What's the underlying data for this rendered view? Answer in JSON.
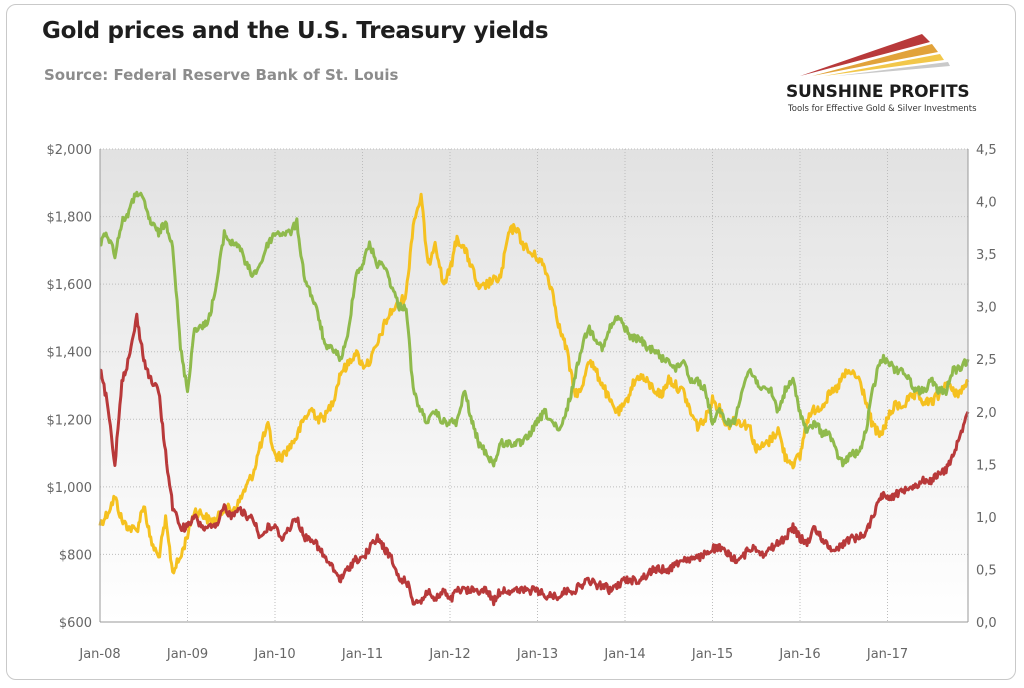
{
  "title": "Gold prices and the U.S. Treasury yields",
  "subtitle": "Source: Federal Reserve Bank of St. Louis",
  "logo": {
    "name": "SUNSHINE PROFITS",
    "tagline": "Tools for Effective Gold & Silver Investments"
  },
  "colors": {
    "gold": "#f5c120",
    "green": "#8fba4c",
    "red": "#b8393a",
    "plot_bg_top": "#e2e2e2",
    "plot_bg_bottom": "#ffffff",
    "grid": "#bdbdbd"
  },
  "chart_data": {
    "type": "line",
    "x_tick_labels": [
      "Jan-08",
      "Jan-09",
      "Jan-10",
      "Jan-11",
      "Jan-12",
      "Jan-13",
      "Jan-14",
      "Jan-15",
      "Jan-16",
      "Jan-17"
    ],
    "y_left_tick_labels": [
      "$600",
      "$800",
      "$1,000",
      "$1,200",
      "$1,400",
      "$1,600",
      "$1,800",
      "$2,000"
    ],
    "y_right_tick_labels": [
      "0,0",
      "0,5",
      "1,0",
      "1,5",
      "2,0",
      "2,5",
      "3,0",
      "3,5",
      "4,0",
      "4,5"
    ],
    "ylim_left": [
      600,
      2000
    ],
    "ylim_right": [
      0,
      4.5
    ],
    "xlim": [
      2008.0,
      2017.92
    ],
    "grid": true,
    "legend": "none",
    "series": [
      {
        "color": "gold",
        "axis": "left",
        "x": [
          2008.0,
          2008.08,
          2008.17,
          2008.25,
          2008.33,
          2008.42,
          2008.5,
          2008.58,
          2008.67,
          2008.75,
          2008.83,
          2008.92,
          2009.0,
          2009.08,
          2009.17,
          2009.25,
          2009.33,
          2009.42,
          2009.5,
          2009.58,
          2009.67,
          2009.75,
          2009.83,
          2009.92,
          2010.0,
          2010.08,
          2010.17,
          2010.25,
          2010.33,
          2010.42,
          2010.5,
          2010.58,
          2010.67,
          2010.75,
          2010.83,
          2010.92,
          2011.0,
          2011.08,
          2011.17,
          2011.25,
          2011.33,
          2011.42,
          2011.5,
          2011.58,
          2011.67,
          2011.75,
          2011.83,
          2011.92,
          2012.0,
          2012.08,
          2012.17,
          2012.25,
          2012.33,
          2012.42,
          2012.5,
          2012.58,
          2012.67,
          2012.75,
          2012.83,
          2012.92,
          2013.0,
          2013.08,
          2013.17,
          2013.25,
          2013.33,
          2013.42,
          2013.5,
          2013.58,
          2013.67,
          2013.75,
          2013.83,
          2013.92,
          2014.0,
          2014.08,
          2014.17,
          2014.25,
          2014.33,
          2014.42,
          2014.5,
          2014.58,
          2014.67,
          2014.75,
          2014.83,
          2014.92,
          2015.0,
          2015.08,
          2015.17,
          2015.25,
          2015.33,
          2015.42,
          2015.5,
          2015.58,
          2015.67,
          2015.75,
          2015.83,
          2015.92,
          2016.0,
          2016.08,
          2016.17,
          2016.25,
          2016.33,
          2016.42,
          2016.5,
          2016.58,
          2016.67,
          2016.75,
          2016.83,
          2016.92,
          2017.0,
          2017.08,
          2017.17,
          2017.25,
          2017.33,
          2017.42,
          2017.5,
          2017.58,
          2017.67,
          2017.75,
          2017.83,
          2017.92
        ],
        "y": [
          890,
          920,
          970,
          900,
          880,
          870,
          950,
          840,
          790,
          900,
          750,
          790,
          860,
          930,
          920,
          900,
          900,
          940,
          930,
          950,
          1000,
          1040,
          1120,
          1180,
          1090,
          1090,
          1120,
          1150,
          1200,
          1230,
          1200,
          1210,
          1260,
          1340,
          1360,
          1400,
          1360,
          1370,
          1420,
          1480,
          1520,
          1540,
          1570,
          1780,
          1860,
          1650,
          1730,
          1600,
          1640,
          1740,
          1700,
          1650,
          1580,
          1600,
          1610,
          1620,
          1750,
          1770,
          1720,
          1690,
          1680,
          1650,
          1580,
          1470,
          1410,
          1280,
          1280,
          1380,
          1340,
          1300,
          1250,
          1220,
          1240,
          1300,
          1330,
          1310,
          1290,
          1270,
          1320,
          1300,
          1280,
          1220,
          1180,
          1200,
          1260,
          1230,
          1180,
          1200,
          1190,
          1180,
          1110,
          1120,
          1140,
          1170,
          1090,
          1070,
          1090,
          1200,
          1230,
          1240,
          1270,
          1290,
          1330,
          1340,
          1320,
          1260,
          1180,
          1150,
          1200,
          1240,
          1240,
          1260,
          1270,
          1250,
          1250,
          1270,
          1310,
          1280,
          1280,
          1310
        ]
      },
      {
        "color": "green",
        "axis": "right",
        "x": [
          2008.0,
          2008.08,
          2008.17,
          2008.25,
          2008.33,
          2008.42,
          2008.5,
          2008.58,
          2008.67,
          2008.75,
          2008.83,
          2008.92,
          2009.0,
          2009.08,
          2009.17,
          2009.25,
          2009.33,
          2009.42,
          2009.5,
          2009.58,
          2009.67,
          2009.75,
          2009.83,
          2009.92,
          2010.0,
          2010.08,
          2010.17,
          2010.25,
          2010.33,
          2010.42,
          2010.5,
          2010.58,
          2010.67,
          2010.75,
          2010.83,
          2010.92,
          2011.0,
          2011.08,
          2011.17,
          2011.25,
          2011.33,
          2011.42,
          2011.5,
          2011.58,
          2011.67,
          2011.75,
          2011.83,
          2011.92,
          2012.0,
          2012.08,
          2012.17,
          2012.25,
          2012.33,
          2012.42,
          2012.5,
          2012.58,
          2012.67,
          2012.75,
          2012.83,
          2012.92,
          2013.0,
          2013.08,
          2013.17,
          2013.25,
          2013.33,
          2013.42,
          2013.5,
          2013.58,
          2013.67,
          2013.75,
          2013.83,
          2013.92,
          2014.0,
          2014.08,
          2014.17,
          2014.25,
          2014.33,
          2014.42,
          2014.5,
          2014.58,
          2014.67,
          2014.75,
          2014.83,
          2014.92,
          2015.0,
          2015.08,
          2015.17,
          2015.25,
          2015.33,
          2015.42,
          2015.5,
          2015.58,
          2015.67,
          2015.75,
          2015.83,
          2015.92,
          2016.0,
          2016.08,
          2016.17,
          2016.25,
          2016.33,
          2016.42,
          2016.5,
          2016.58,
          2016.67,
          2016.75,
          2016.83,
          2016.92,
          2017.0,
          2017.08,
          2017.17,
          2017.25,
          2017.33,
          2017.42,
          2017.5,
          2017.58,
          2017.67,
          2017.75,
          2017.83,
          2017.92
        ],
        "y": [
          3.6,
          3.7,
          3.5,
          3.8,
          3.9,
          4.1,
          4.0,
          3.8,
          3.7,
          3.8,
          3.6,
          2.6,
          2.2,
          2.8,
          2.8,
          2.9,
          3.2,
          3.7,
          3.6,
          3.6,
          3.4,
          3.3,
          3.4,
          3.6,
          3.7,
          3.7,
          3.7,
          3.8,
          3.3,
          3.1,
          2.9,
          2.6,
          2.6,
          2.5,
          2.7,
          3.3,
          3.4,
          3.6,
          3.4,
          3.4,
          3.2,
          3.0,
          3.0,
          2.2,
          2.0,
          1.9,
          2.0,
          1.9,
          1.9,
          1.9,
          2.2,
          1.9,
          1.7,
          1.6,
          1.5,
          1.7,
          1.7,
          1.7,
          1.7,
          1.8,
          1.9,
          2.0,
          1.9,
          1.8,
          2.0,
          2.3,
          2.6,
          2.8,
          2.7,
          2.6,
          2.8,
          2.9,
          2.8,
          2.7,
          2.7,
          2.6,
          2.6,
          2.5,
          2.5,
          2.4,
          2.5,
          2.3,
          2.3,
          2.2,
          1.9,
          2.0,
          1.9,
          1.9,
          2.2,
          2.4,
          2.3,
          2.2,
          2.2,
          2.0,
          2.2,
          2.3,
          2.0,
          1.8,
          1.9,
          1.8,
          1.8,
          1.6,
          1.5,
          1.6,
          1.6,
          1.8,
          2.2,
          2.5,
          2.5,
          2.4,
          2.4,
          2.3,
          2.2,
          2.2,
          2.3,
          2.2,
          2.2,
          2.4,
          2.4,
          2.5
        ]
      },
      {
        "color": "red",
        "axis": "right",
        "x": [
          2008.0,
          2008.08,
          2008.17,
          2008.25,
          2008.33,
          2008.42,
          2008.5,
          2008.58,
          2008.67,
          2008.75,
          2008.83,
          2008.92,
          2009.0,
          2009.08,
          2009.17,
          2009.25,
          2009.33,
          2009.42,
          2009.5,
          2009.58,
          2009.67,
          2009.75,
          2009.83,
          2009.92,
          2010.0,
          2010.08,
          2010.17,
          2010.25,
          2010.33,
          2010.42,
          2010.5,
          2010.58,
          2010.67,
          2010.75,
          2010.83,
          2010.92,
          2011.0,
          2011.08,
          2011.17,
          2011.25,
          2011.33,
          2011.42,
          2011.5,
          2011.58,
          2011.67,
          2011.75,
          2011.83,
          2011.92,
          2012.0,
          2012.08,
          2012.17,
          2012.25,
          2012.33,
          2012.42,
          2012.5,
          2012.58,
          2012.67,
          2012.75,
          2012.83,
          2012.92,
          2013.0,
          2013.08,
          2013.17,
          2013.25,
          2013.33,
          2013.42,
          2013.5,
          2013.58,
          2013.67,
          2013.75,
          2013.83,
          2013.92,
          2014.0,
          2014.08,
          2014.17,
          2014.25,
          2014.33,
          2014.42,
          2014.5,
          2014.58,
          2014.67,
          2014.75,
          2014.83,
          2014.92,
          2015.0,
          2015.08,
          2015.17,
          2015.25,
          2015.33,
          2015.42,
          2015.5,
          2015.58,
          2015.67,
          2015.75,
          2015.83,
          2015.92,
          2016.0,
          2016.08,
          2016.17,
          2016.25,
          2016.33,
          2016.42,
          2016.5,
          2016.58,
          2016.67,
          2016.75,
          2016.83,
          2016.92,
          2017.0,
          2017.08,
          2017.17,
          2017.25,
          2017.33,
          2017.42,
          2017.5,
          2017.58,
          2017.67,
          2017.75,
          2017.83,
          2017.92
        ],
        "y": [
          2.4,
          2.1,
          1.5,
          2.3,
          2.5,
          2.9,
          2.5,
          2.3,
          2.2,
          1.6,
          1.1,
          0.9,
          0.9,
          1.0,
          0.9,
          0.9,
          0.9,
          1.1,
          1.0,
          1.1,
          1.0,
          1.0,
          0.8,
          0.9,
          0.9,
          0.8,
          0.9,
          1.0,
          0.8,
          0.8,
          0.7,
          0.6,
          0.5,
          0.4,
          0.5,
          0.6,
          0.6,
          0.7,
          0.8,
          0.7,
          0.6,
          0.4,
          0.4,
          0.2,
          0.2,
          0.3,
          0.2,
          0.3,
          0.2,
          0.3,
          0.3,
          0.3,
          0.3,
          0.3,
          0.2,
          0.3,
          0.3,
          0.3,
          0.3,
          0.3,
          0.3,
          0.25,
          0.25,
          0.25,
          0.3,
          0.3,
          0.35,
          0.4,
          0.35,
          0.35,
          0.3,
          0.35,
          0.4,
          0.4,
          0.4,
          0.45,
          0.5,
          0.5,
          0.5,
          0.55,
          0.6,
          0.6,
          0.6,
          0.65,
          0.7,
          0.7,
          0.65,
          0.6,
          0.6,
          0.7,
          0.7,
          0.65,
          0.7,
          0.75,
          0.8,
          0.9,
          0.8,
          0.75,
          0.9,
          0.8,
          0.7,
          0.7,
          0.75,
          0.8,
          0.8,
          0.85,
          1.0,
          1.2,
          1.2,
          1.2,
          1.25,
          1.3,
          1.3,
          1.35,
          1.35,
          1.4,
          1.45,
          1.6,
          1.75,
          2.0
        ]
      }
    ]
  }
}
